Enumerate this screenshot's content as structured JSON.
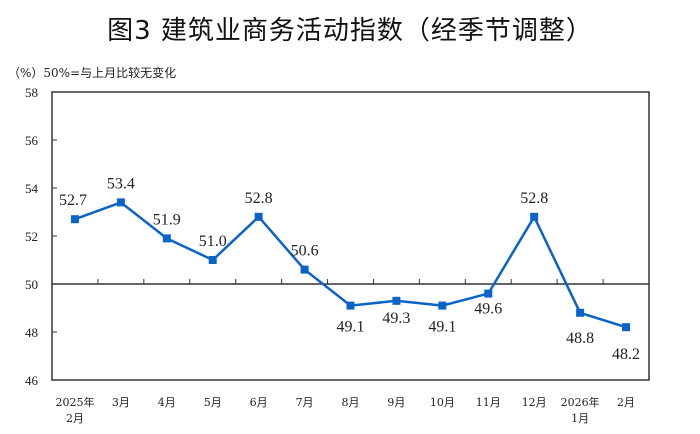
{
  "title": "图3  建筑业商务活动指数（经季节调整）",
  "subtitle": "（%）50%=与上月比较无变化",
  "colors": {
    "series": "#0a64c8",
    "axis": "#333333"
  },
  "chart_data": {
    "type": "line",
    "title": "图3  建筑业商务活动指数（经季节调整）",
    "subtitle": "（%）50%=与上月比较无变化",
    "xlabel": "",
    "ylabel": "%",
    "ylim": [
      46,
      58
    ],
    "yticks": [
      46,
      48,
      50,
      52,
      54,
      56,
      58
    ],
    "reference_line": 50,
    "grid": false,
    "legend": null,
    "categories": [
      "2025年\n2月",
      "3月",
      "4月",
      "5月",
      "6月",
      "7月",
      "8月",
      "9月",
      "10月",
      "11月",
      "12月",
      "2026年\n1月",
      "2月"
    ],
    "category_lines": [
      [
        "2025年",
        "2月"
      ],
      [
        "3月"
      ],
      [
        "4月"
      ],
      [
        "5月"
      ],
      [
        "6月"
      ],
      [
        "7月"
      ],
      [
        "8月"
      ],
      [
        "9月"
      ],
      [
        "10月"
      ],
      [
        "11月"
      ],
      [
        "12月"
      ],
      [
        "2026年",
        "1月"
      ],
      [
        "2月"
      ]
    ],
    "series": [
      {
        "name": "建筑业商务活动指数",
        "values": [
          52.7,
          53.4,
          51.9,
          51.0,
          52.8,
          50.6,
          49.1,
          49.3,
          49.1,
          49.6,
          52.8,
          48.8,
          48.2
        ],
        "labels": [
          "52.7",
          "53.4",
          "51.9",
          "51.0",
          "52.8",
          "50.6",
          "49.1",
          "49.3",
          "49.1",
          "49.6",
          "52.8",
          "48.8",
          "48.2"
        ]
      }
    ]
  }
}
